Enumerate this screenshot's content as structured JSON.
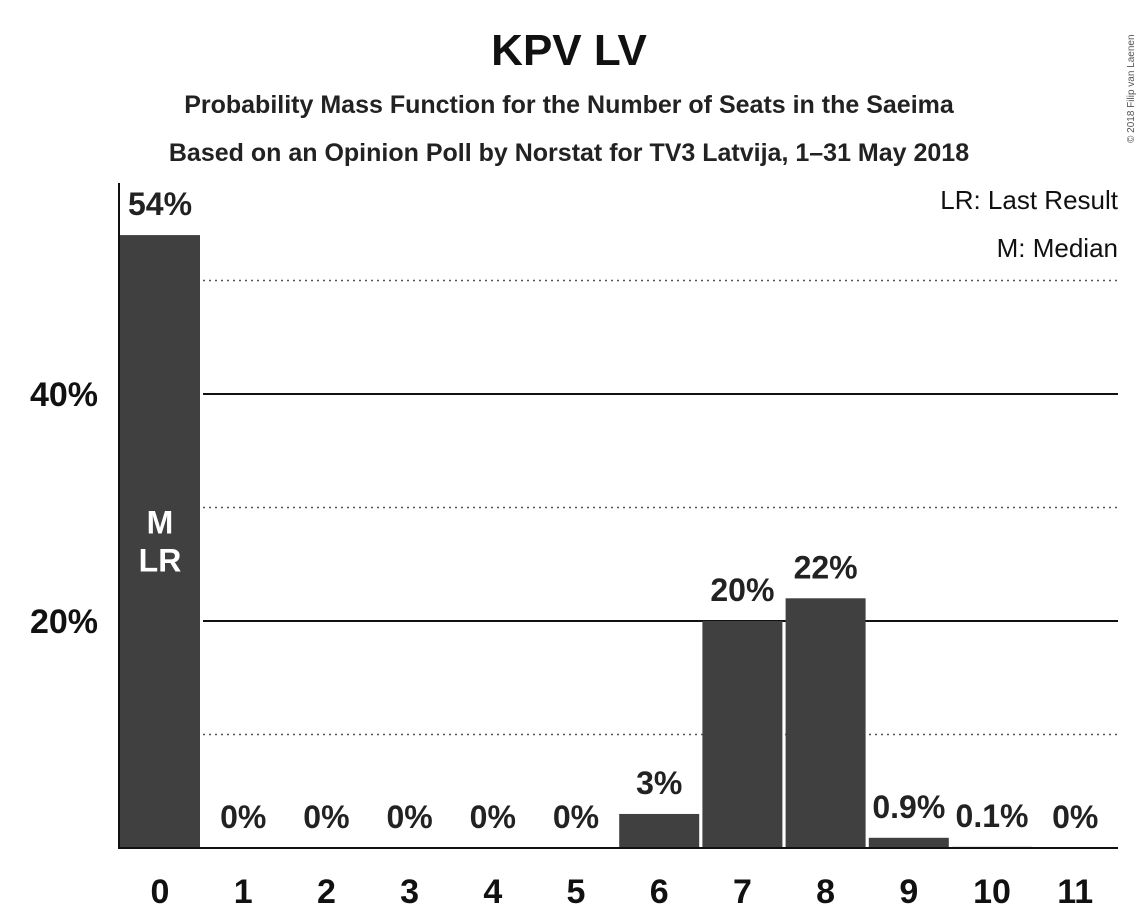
{
  "copyright": "© 2018 Filip van Laenen",
  "chart_data": {
    "type": "bar",
    "title": "KPV LV",
    "subtitle_1": "Probability Mass Function for the Number of Seats in the Saeima",
    "subtitle_2": "Based on an Opinion Poll by Norstat for TV3 Latvija, 1–31 May 2018",
    "legend": [
      "LR: Last Result",
      "M: Median"
    ],
    "categories": [
      "0",
      "1",
      "2",
      "3",
      "4",
      "5",
      "6",
      "7",
      "8",
      "9",
      "10",
      "11"
    ],
    "values": [
      54,
      0,
      0,
      0,
      0,
      0,
      3,
      20,
      22,
      0.9,
      0.1,
      0
    ],
    "value_labels": [
      "54%",
      "0%",
      "0%",
      "0%",
      "0%",
      "0%",
      "3%",
      "20%",
      "22%",
      "0.9%",
      "0.1%",
      "0%"
    ],
    "bar_markers": [
      {
        "category": "0",
        "lines": [
          "M",
          "LR"
        ]
      }
    ],
    "ylim": [
      0,
      60
    ],
    "yticks": [
      {
        "value": 20,
        "label": "20%"
      },
      {
        "value": 40,
        "label": "40%"
      }
    ],
    "minor_gridlines": [
      10,
      30,
      50
    ],
    "bar_color": "#404040",
    "grid": true,
    "legend_position": "top-right"
  }
}
